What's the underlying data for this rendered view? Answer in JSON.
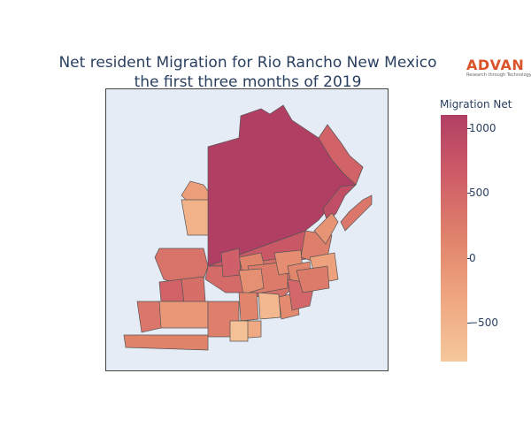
{
  "title_line1": "Net resident Migration for Rio Rancho New Mexico",
  "title_line2": "the first three months of 2019",
  "logo": {
    "name": "ADVAN",
    "tagline": "Research through Technology",
    "color": "#d9542b"
  },
  "colorbar": {
    "title": "Migration Net",
    "ticks": [
      {
        "label": "1000",
        "value": 1000
      },
      {
        "label": "500",
        "value": 500
      },
      {
        "label": "0",
        "value": 0
      },
      {
        "label": "−500",
        "value": -500
      }
    ],
    "range": [
      -800,
      1100
    ],
    "colors": [
      "#b13f64",
      "#ce5d68",
      "#e0836b",
      "#eea37e",
      "#f6c89c"
    ]
  },
  "map": {
    "background": "#e5ecf6",
    "region_values": [
      1100,
      550,
      850,
      300,
      700,
      400,
      -250,
      -500,
      200,
      -100,
      350,
      450,
      150,
      600,
      250,
      -50,
      0,
      100,
      550,
      400,
      -300,
      -150,
      300,
      200,
      100,
      -600,
      -400,
      50,
      -700,
      150,
      500,
      250
    ]
  }
}
